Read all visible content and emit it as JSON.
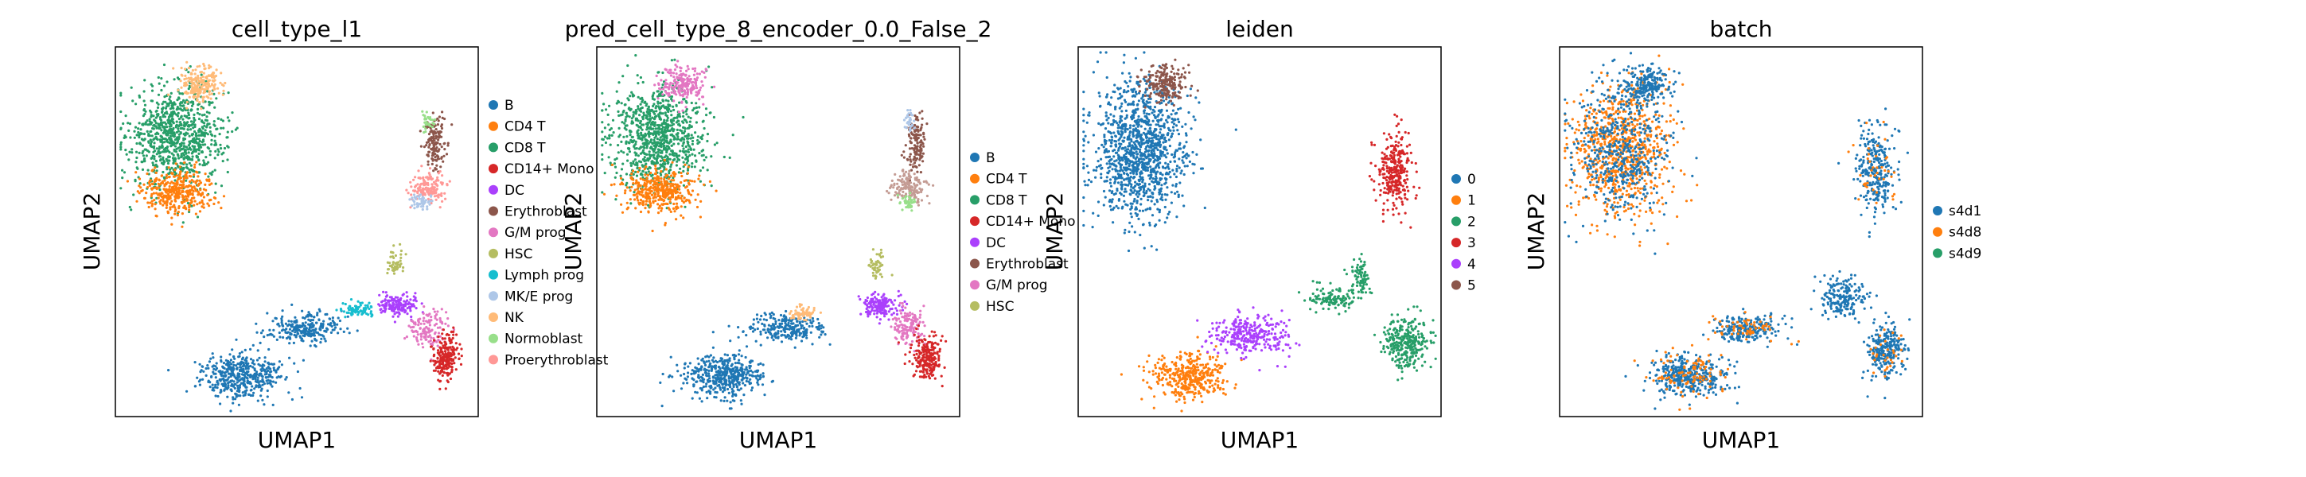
{
  "figure": {
    "shared_xlabel": "UMAP1",
    "shared_ylabel": "UMAP2"
  },
  "chart_data": [
    {
      "type": "scatter",
      "title": "cell_type_l1",
      "xlabel": "UMAP1",
      "ylabel": "UMAP2",
      "grid": false,
      "legend_position": "right",
      "legend": [
        {
          "name": "B",
          "color": "#1f77b4"
        },
        {
          "name": "CD4 T",
          "color": "#ff7f0e"
        },
        {
          "name": "CD8 T",
          "color": "#279e68"
        },
        {
          "name": "CD14+ Mono",
          "color": "#d62728"
        },
        {
          "name": "DC",
          "color": "#aa40fc"
        },
        {
          "name": "Erythroblast",
          "color": "#8c564b"
        },
        {
          "name": "G/M prog",
          "color": "#e377c2"
        },
        {
          "name": "HSC",
          "color": "#b5bd61"
        },
        {
          "name": "Lymph prog",
          "color": "#17becf"
        },
        {
          "name": "MK/E prog",
          "color": "#aec7e8"
        },
        {
          "name": "NK",
          "color": "#ffbb78"
        },
        {
          "name": "Normoblast",
          "color": "#98df8a"
        },
        {
          "name": "Proerythroblast",
          "color": "#ff9896"
        }
      ],
      "clusters": [
        {
          "color": "#279e68",
          "cx": 0.17,
          "cy": 0.76,
          "rx": 0.13,
          "ry": 0.14,
          "n": 900
        },
        {
          "color": "#ff7f0e",
          "cx": 0.17,
          "cy": 0.61,
          "rx": 0.1,
          "ry": 0.06,
          "n": 380
        },
        {
          "color": "#ffbb78",
          "cx": 0.24,
          "cy": 0.9,
          "rx": 0.06,
          "ry": 0.05,
          "n": 200
        },
        {
          "color": "#8c564b",
          "cx": 0.88,
          "cy": 0.74,
          "rx": 0.03,
          "ry": 0.07,
          "n": 140
        },
        {
          "color": "#ff9896",
          "cx": 0.86,
          "cy": 0.62,
          "rx": 0.05,
          "ry": 0.04,
          "n": 150
        },
        {
          "color": "#aec7e8",
          "cx": 0.84,
          "cy": 0.58,
          "rx": 0.03,
          "ry": 0.02,
          "n": 50
        },
        {
          "color": "#98df8a",
          "cx": 0.86,
          "cy": 0.8,
          "rx": 0.015,
          "ry": 0.03,
          "n": 30
        },
        {
          "color": "#1f77b4",
          "cx": 0.35,
          "cy": 0.11,
          "rx": 0.11,
          "ry": 0.06,
          "n": 450
        },
        {
          "color": "#1f77b4",
          "cx": 0.52,
          "cy": 0.24,
          "rx": 0.1,
          "ry": 0.04,
          "n": 250
        },
        {
          "color": "#17becf",
          "cx": 0.67,
          "cy": 0.29,
          "rx": 0.05,
          "ry": 0.02,
          "n": 80
        },
        {
          "color": "#aa40fc",
          "cx": 0.78,
          "cy": 0.3,
          "rx": 0.05,
          "ry": 0.03,
          "n": 160
        },
        {
          "color": "#e377c2",
          "cx": 0.86,
          "cy": 0.24,
          "rx": 0.05,
          "ry": 0.05,
          "n": 130
        },
        {
          "color": "#d62728",
          "cx": 0.91,
          "cy": 0.16,
          "rx": 0.04,
          "ry": 0.06,
          "n": 220
        },
        {
          "color": "#b5bd61",
          "cx": 0.77,
          "cy": 0.41,
          "rx": 0.02,
          "ry": 0.04,
          "n": 50
        }
      ]
    },
    {
      "type": "scatter",
      "title": "pred_cell_type_8_encoder_0.0_False_2",
      "xlabel": "UMAP1",
      "ylabel": "UMAP2",
      "grid": false,
      "legend_position": "right",
      "legend": [
        {
          "name": "B",
          "color": "#1f77b4"
        },
        {
          "name": "CD4 T",
          "color": "#ff7f0e"
        },
        {
          "name": "CD8 T",
          "color": "#279e68"
        },
        {
          "name": "CD14+ Mono",
          "color": "#d62728"
        },
        {
          "name": "DC",
          "color": "#aa40fc"
        },
        {
          "name": "Erythroblast",
          "color": "#8c564b"
        },
        {
          "name": "G/M prog",
          "color": "#e377c2"
        },
        {
          "name": "HSC",
          "color": "#b5bd61"
        }
      ],
      "clusters": [
        {
          "color": "#279e68",
          "cx": 0.17,
          "cy": 0.76,
          "rx": 0.13,
          "ry": 0.14,
          "n": 900
        },
        {
          "color": "#ff7f0e",
          "cx": 0.17,
          "cy": 0.61,
          "rx": 0.1,
          "ry": 0.06,
          "n": 380
        },
        {
          "color": "#e377c2",
          "cx": 0.24,
          "cy": 0.9,
          "rx": 0.06,
          "ry": 0.05,
          "n": 200
        },
        {
          "color": "#8c564b",
          "cx": 0.88,
          "cy": 0.74,
          "rx": 0.03,
          "ry": 0.07,
          "n": 140
        },
        {
          "color": "#c49c94",
          "cx": 0.86,
          "cy": 0.62,
          "rx": 0.05,
          "ry": 0.04,
          "n": 150
        },
        {
          "color": "#98df8a",
          "cx": 0.86,
          "cy": 0.58,
          "rx": 0.02,
          "ry": 0.02,
          "n": 40
        },
        {
          "color": "#aec7e8",
          "cx": 0.86,
          "cy": 0.8,
          "rx": 0.015,
          "ry": 0.03,
          "n": 30
        },
        {
          "color": "#1f77b4",
          "cx": 0.35,
          "cy": 0.11,
          "rx": 0.11,
          "ry": 0.06,
          "n": 450
        },
        {
          "color": "#1f77b4",
          "cx": 0.52,
          "cy": 0.24,
          "rx": 0.1,
          "ry": 0.04,
          "n": 250
        },
        {
          "color": "#ffbb78",
          "cx": 0.57,
          "cy": 0.28,
          "rx": 0.04,
          "ry": 0.02,
          "n": 60
        },
        {
          "color": "#aa40fc",
          "cx": 0.78,
          "cy": 0.3,
          "rx": 0.05,
          "ry": 0.03,
          "n": 160
        },
        {
          "color": "#e377c2",
          "cx": 0.86,
          "cy": 0.24,
          "rx": 0.05,
          "ry": 0.05,
          "n": 130
        },
        {
          "color": "#d62728",
          "cx": 0.91,
          "cy": 0.16,
          "rx": 0.04,
          "ry": 0.06,
          "n": 220
        },
        {
          "color": "#b5bd61",
          "cx": 0.77,
          "cy": 0.41,
          "rx": 0.02,
          "ry": 0.04,
          "n": 50
        }
      ]
    },
    {
      "type": "scatter",
      "title": "leiden",
      "xlabel": "UMAP1",
      "ylabel": "UMAP2",
      "grid": false,
      "legend_position": "right",
      "legend": [
        {
          "name": "0",
          "color": "#1f77b4"
        },
        {
          "name": "1",
          "color": "#ff7f0e"
        },
        {
          "name": "2",
          "color": "#279e68"
        },
        {
          "name": "3",
          "color": "#d62728"
        },
        {
          "name": "4",
          "color": "#aa40fc"
        },
        {
          "name": "5",
          "color": "#8c564b"
        }
      ],
      "clusters": [
        {
          "color": "#1f77b4",
          "cx": 0.17,
          "cy": 0.72,
          "rx": 0.13,
          "ry": 0.18,
          "n": 1200
        },
        {
          "color": "#8c564b",
          "cx": 0.24,
          "cy": 0.9,
          "rx": 0.06,
          "ry": 0.05,
          "n": 200
        },
        {
          "color": "#d62728",
          "cx": 0.87,
          "cy": 0.67,
          "rx": 0.05,
          "ry": 0.11,
          "n": 300
        },
        {
          "color": "#ff7f0e",
          "cx": 0.3,
          "cy": 0.11,
          "rx": 0.1,
          "ry": 0.06,
          "n": 400
        },
        {
          "color": "#aa40fc",
          "cx": 0.47,
          "cy": 0.22,
          "rx": 0.11,
          "ry": 0.05,
          "n": 300
        },
        {
          "color": "#279e68",
          "cx": 0.7,
          "cy": 0.32,
          "rx": 0.07,
          "ry": 0.03,
          "n": 120
        },
        {
          "color": "#279e68",
          "cx": 0.78,
          "cy": 0.38,
          "rx": 0.03,
          "ry": 0.05,
          "n": 80
        },
        {
          "color": "#279e68",
          "cx": 0.9,
          "cy": 0.2,
          "rx": 0.06,
          "ry": 0.07,
          "n": 300
        }
      ]
    },
    {
      "type": "scatter",
      "title": "batch",
      "xlabel": "UMAP1",
      "ylabel": "UMAP2",
      "grid": false,
      "legend_position": "right",
      "legend": [
        {
          "name": "s4d1",
          "color": "#1f77b4"
        },
        {
          "name": "s4d8",
          "color": "#ff7f0e"
        },
        {
          "name": "s4d9",
          "color": "#279e68"
        }
      ],
      "clusters": [
        {
          "color": "#ff7f0e",
          "cx": 0.17,
          "cy": 0.72,
          "rx": 0.13,
          "ry": 0.18,
          "n": 800
        },
        {
          "color": "#1f77b4",
          "cx": 0.17,
          "cy": 0.72,
          "rx": 0.13,
          "ry": 0.18,
          "n": 500
        },
        {
          "color": "#1f77b4",
          "cx": 0.24,
          "cy": 0.9,
          "rx": 0.06,
          "ry": 0.05,
          "n": 200
        },
        {
          "color": "#1f77b4",
          "cx": 0.87,
          "cy": 0.67,
          "rx": 0.05,
          "ry": 0.11,
          "n": 280
        },
        {
          "color": "#ff7f0e",
          "cx": 0.87,
          "cy": 0.67,
          "rx": 0.05,
          "ry": 0.11,
          "n": 40
        },
        {
          "color": "#1f77b4",
          "cx": 0.35,
          "cy": 0.11,
          "rx": 0.11,
          "ry": 0.06,
          "n": 380
        },
        {
          "color": "#ff7f0e",
          "cx": 0.35,
          "cy": 0.11,
          "rx": 0.11,
          "ry": 0.06,
          "n": 100
        },
        {
          "color": "#1f77b4",
          "cx": 0.52,
          "cy": 0.24,
          "rx": 0.1,
          "ry": 0.04,
          "n": 220
        },
        {
          "color": "#ff7f0e",
          "cx": 0.52,
          "cy": 0.24,
          "rx": 0.1,
          "ry": 0.04,
          "n": 60
        },
        {
          "color": "#1f77b4",
          "cx": 0.78,
          "cy": 0.32,
          "rx": 0.06,
          "ry": 0.05,
          "n": 200
        },
        {
          "color": "#1f77b4",
          "cx": 0.9,
          "cy": 0.18,
          "rx": 0.05,
          "ry": 0.07,
          "n": 250
        },
        {
          "color": "#ff7f0e",
          "cx": 0.9,
          "cy": 0.18,
          "rx": 0.05,
          "ry": 0.07,
          "n": 30
        }
      ]
    }
  ]
}
